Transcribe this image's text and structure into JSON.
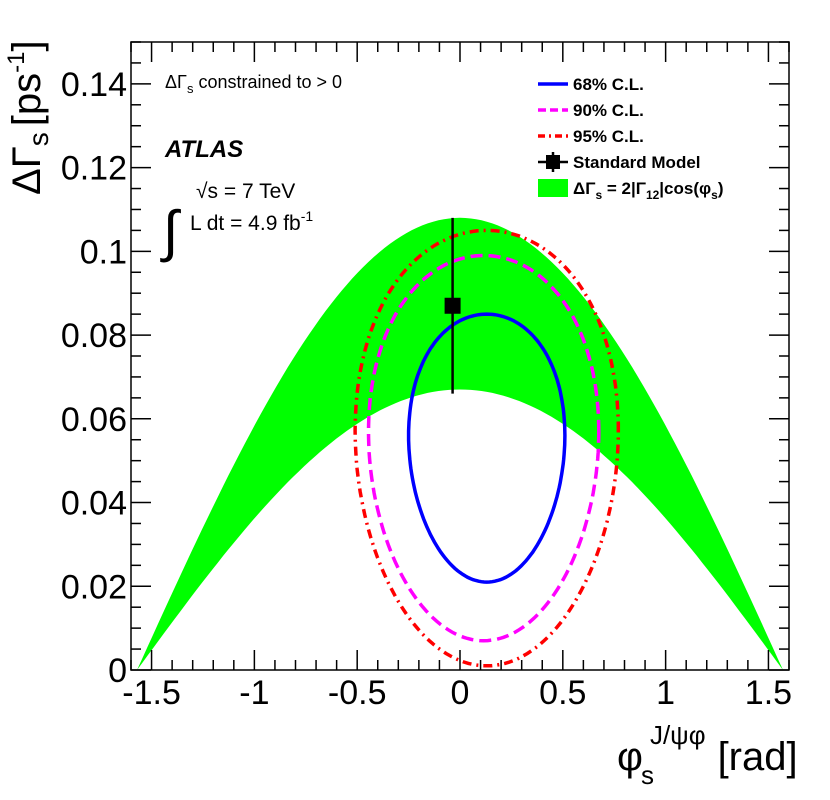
{
  "chart_data": {
    "type": "line",
    "title": "",
    "xlabel": {
      "symbol": "φ",
      "sub": "s",
      "sup": "J/ψφ",
      "unit": "[rad]"
    },
    "ylabel": {
      "symbol": "ΔΓ",
      "sub": "s",
      "unit_open": "[ps",
      "unit_sup": "-1",
      "unit_close": "]"
    },
    "xlim": [
      -1.6,
      1.6
    ],
    "ylim": [
      0,
      0.15
    ],
    "xticks": [
      -1.5,
      -1,
      -0.5,
      0,
      0.5,
      1,
      1.5
    ],
    "xtick_labels": [
      "-1.5",
      "-1",
      "-0.5",
      "0",
      "0.5",
      "1",
      "1.5"
    ],
    "yticks": [
      0,
      0.02,
      0.04,
      0.06,
      0.08,
      0.1,
      0.12,
      0.14
    ],
    "ytick_labels": [
      "0",
      "0.02",
      "0.04",
      "0.06",
      "0.08",
      "0.1",
      "0.12",
      "0.14"
    ],
    "band": {
      "name": "ΔΓs = 2|Γ12|cos(φs)",
      "color": "#00ff00",
      "upper_amplitude": 0.108,
      "lower_amplitude": 0.067,
      "x_range": [
        -1.5708,
        1.5708
      ]
    },
    "contours": [
      {
        "name": "68% C.L.",
        "color": "#0000ff",
        "style": "solid",
        "center": [
          0.13,
          0.053
        ],
        "semi_x": 0.38,
        "semi_y": 0.032,
        "tilt": 0.1
      },
      {
        "name": "90% C.L.",
        "color": "#ff00ff",
        "style": "dashed",
        "center": [
          0.115,
          0.053
        ],
        "semi_x": 0.56,
        "semi_y": 0.046,
        "tilt": 0.13
      },
      {
        "name": "95% C.L.",
        "color": "#ff0000",
        "style": "dashdot",
        "center": [
          0.13,
          0.053
        ],
        "semi_x": 0.64,
        "semi_y": 0.052,
        "tilt": 0.14
      }
    ],
    "standard_model": {
      "name": "Standard Model",
      "x": -0.036,
      "y": 0.087,
      "y_err_low": 0.021,
      "y_err_high": 0.021,
      "color": "#000000"
    },
    "legend": {
      "position": "top-right",
      "entries": [
        {
          "label": "68% C.L.",
          "marker": "line",
          "color": "#0000ff",
          "style": "solid"
        },
        {
          "label": "90% C.L.",
          "marker": "line",
          "color": "#ff00ff",
          "style": "dashed"
        },
        {
          "label": "95% C.L.",
          "marker": "line",
          "color": "#ff0000",
          "style": "dashdot"
        },
        {
          "label": "Standard Model",
          "marker": "square",
          "color": "#000000",
          "style": "solid"
        }
      ],
      "band_entry": {
        "pre": "ΔΓ",
        "pre_sub": "s",
        "mid": " = 2|Γ",
        "mid_sub": "12",
        "post": "|cos(φ",
        "post_sub": "s",
        "end": ")",
        "color": "#00ff00"
      }
    },
    "annotations": {
      "constraint": {
        "pre": "ΔΓ",
        "sub": "s",
        "post": " constrained to > 0"
      },
      "experiment": "ATLAS",
      "energy": "√s = 7 TeV",
      "luminosity": {
        "pre": "L dt = 4.9 fb",
        "sup": "-1"
      },
      "integral": "∫"
    }
  }
}
